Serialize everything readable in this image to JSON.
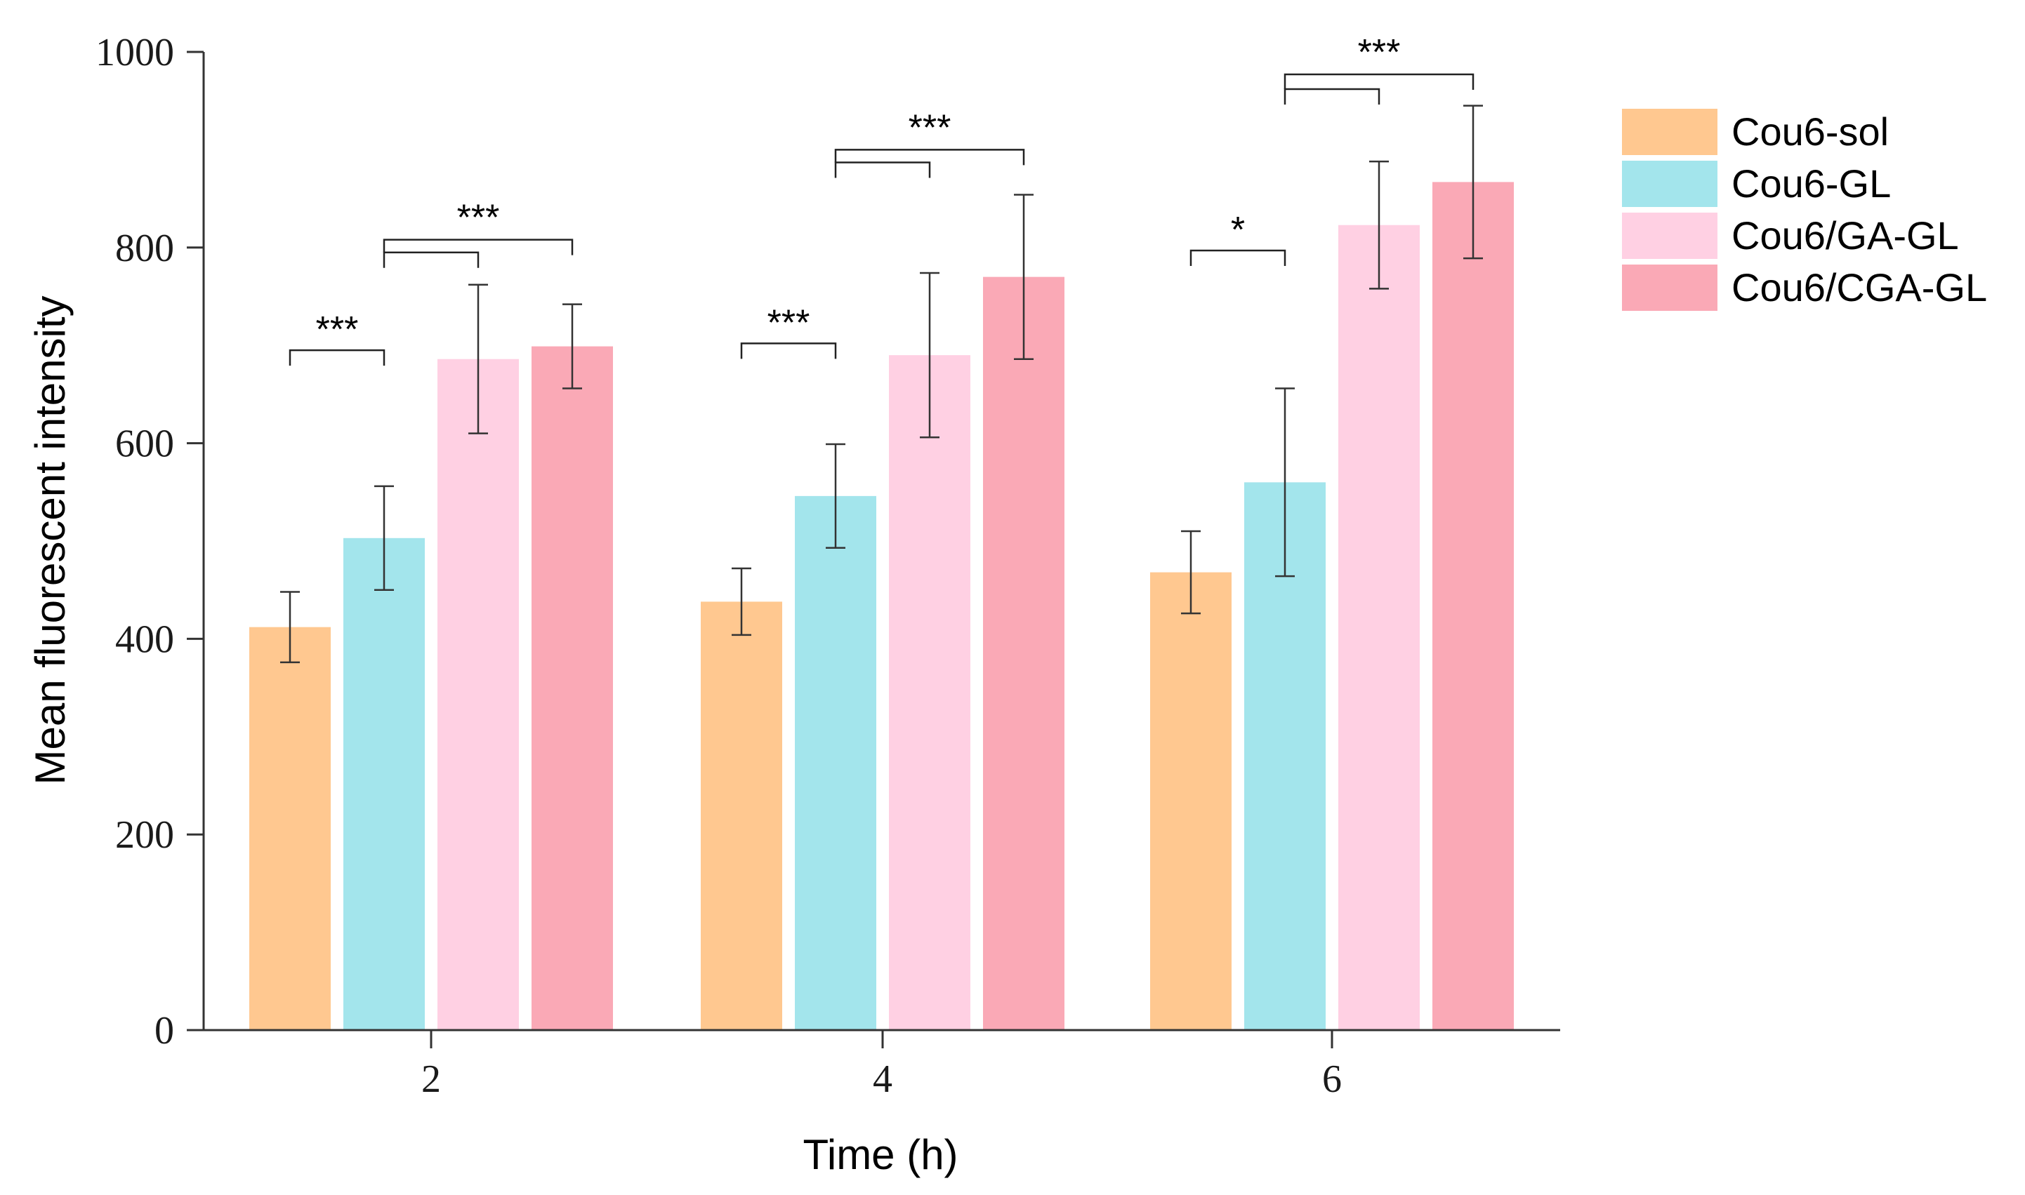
{
  "chart_data": {
    "type": "bar",
    "title": "",
    "xlabel": "Time (h)",
    "ylabel": "Mean fluorescent intensity",
    "ylim": [
      0,
      1000
    ],
    "yticks": [
      "0",
      "200",
      "400",
      "600",
      "800",
      "1000"
    ],
    "categories": [
      "2",
      "4",
      "6"
    ],
    "legend_position": "top-right, outside plot",
    "series": [
      {
        "name": "Cou6-sol",
        "color": "#FFC890",
        "values": [
          412,
          438,
          468
        ],
        "errors": [
          36,
          34,
          42
        ]
      },
      {
        "name": "Cou6-GL",
        "color": "#A3E5EC",
        "values": [
          503,
          546,
          560
        ],
        "errors": [
          53,
          53,
          96
        ]
      },
      {
        "name": "Cou6/GA-GL",
        "color": "#FFD0E3",
        "values": [
          686,
          690,
          823
        ],
        "errors": [
          76,
          84,
          65
        ]
      },
      {
        "name": "Cou6/CGA-GL",
        "color": "#FAA9B6",
        "values": [
          699,
          770,
          867
        ],
        "errors": [
          43,
          84,
          78
        ]
      }
    ],
    "significance": [
      {
        "group": 0,
        "from": 0,
        "to": [
          1
        ],
        "label": "***",
        "y": 695
      },
      {
        "group": 0,
        "from": 1,
        "to": [
          2,
          3
        ],
        "label": "***",
        "y": 795,
        "y2": 808
      },
      {
        "group": 1,
        "from": 0,
        "to": [
          1
        ],
        "label": "***",
        "y": 702
      },
      {
        "group": 1,
        "from": 1,
        "to": [
          2,
          3
        ],
        "label": "***",
        "y": 887,
        "y2": 900
      },
      {
        "group": 2,
        "from": 0,
        "to": [
          1
        ],
        "label": "*",
        "y": 797
      },
      {
        "group": 2,
        "from": 1,
        "to": [
          2,
          3
        ],
        "label": "***",
        "y": 962,
        "y2": 977
      }
    ]
  }
}
